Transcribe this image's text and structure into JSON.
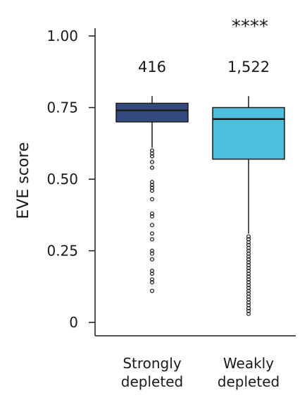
{
  "chart_data": {
    "type": "box",
    "ylabel": "EVE score",
    "ylim": [
      0,
      1
    ],
    "yticks": [
      "0",
      "0.25",
      "0.50",
      "0.75",
      "1.00"
    ],
    "ytick_values": [
      0,
      0.25,
      0.5,
      0.75,
      1.0
    ],
    "grid": false,
    "significance": "****",
    "groups": [
      {
        "category_lines": [
          "Strongly",
          "depleted"
        ],
        "n_label": "416",
        "color": "#34497E",
        "whisker_low": 0.61,
        "q1": 0.7,
        "median": 0.74,
        "q3": 0.765,
        "whisker_high": 0.79,
        "outliers": [
          0.6,
          0.59,
          0.58,
          0.56,
          0.54,
          0.49,
          0.48,
          0.47,
          0.46,
          0.43,
          0.38,
          0.37,
          0.34,
          0.31,
          0.29,
          0.25,
          0.24,
          0.22,
          0.18,
          0.17,
          0.15,
          0.14,
          0.11
        ]
      },
      {
        "category_lines": [
          "Weakly",
          "depleted"
        ],
        "n_label": "1,522",
        "color": "#4DBEDC",
        "whisker_low": 0.31,
        "q1": 0.57,
        "median": 0.71,
        "q3": 0.75,
        "whisker_high": 0.79,
        "outliers": [
          0.3,
          0.29,
          0.28,
          0.27,
          0.26,
          0.25,
          0.24,
          0.23,
          0.22,
          0.21,
          0.2,
          0.19,
          0.18,
          0.17,
          0.16,
          0.15,
          0.14,
          0.13,
          0.12,
          0.11,
          0.1,
          0.09,
          0.08,
          0.07,
          0.06,
          0.05,
          0.04,
          0.03
        ]
      }
    ]
  }
}
